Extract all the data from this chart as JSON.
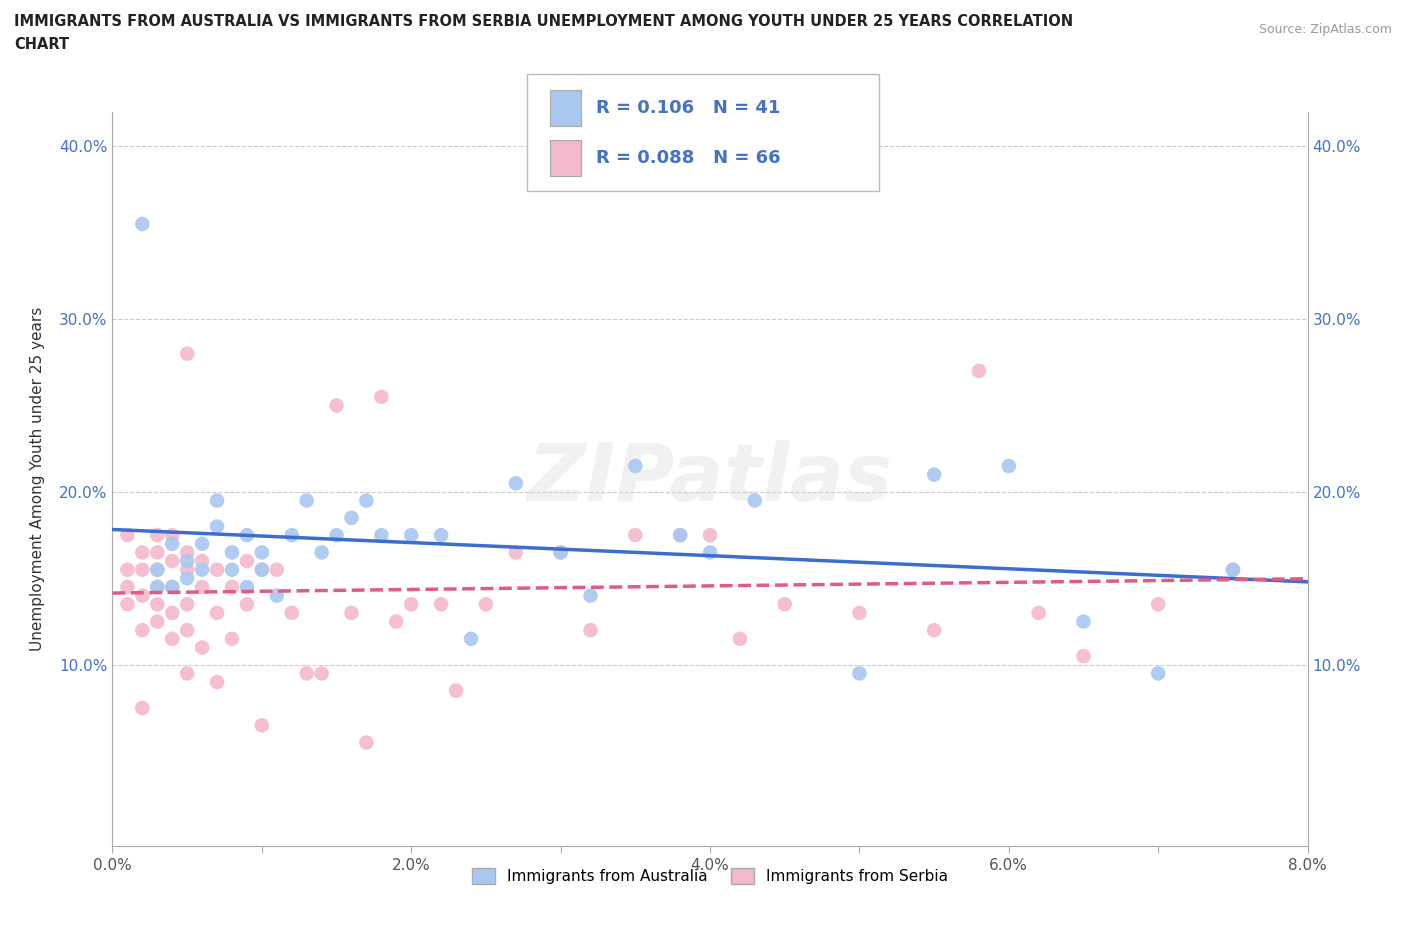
{
  "title": "IMMIGRANTS FROM AUSTRALIA VS IMMIGRANTS FROM SERBIA UNEMPLOYMENT AMONG YOUTH UNDER 25 YEARS CORRELATION\nCHART",
  "source_text": "Source: ZipAtlas.com",
  "ylabel": "Unemployment Among Youth under 25 years",
  "watermark": "ZIPatlas",
  "legend_label_1": "Immigrants from Australia",
  "legend_label_2": "Immigrants from Serbia",
  "R1": 0.106,
  "N1": 41,
  "R2": 0.088,
  "N2": 66,
  "color_australia": "#a8c8f0",
  "color_serbia": "#f4b8cc",
  "line_color_australia": "#3a6fcd",
  "line_color_serbia": "#e05a8a",
  "xlim": [
    0.0,
    0.08
  ],
  "ylim": [
    -0.005,
    0.42
  ],
  "xticks": [
    0.0,
    0.01,
    0.02,
    0.03,
    0.04,
    0.05,
    0.06,
    0.07,
    0.08
  ],
  "xtick_labels_show": [
    true,
    false,
    true,
    false,
    true,
    false,
    true,
    false,
    true
  ],
  "xtick_labels": [
    "0.0%",
    "",
    "2.0%",
    "",
    "4.0%",
    "",
    "6.0%",
    "",
    "8.0%"
  ],
  "yticks": [
    0.0,
    0.1,
    0.2,
    0.3,
    0.4
  ],
  "ytick_labels_left": [
    "",
    "10.0%",
    "20.0%",
    "30.0%",
    "40.0%"
  ],
  "ytick_labels_right": [
    "",
    "10.0%",
    "20.0%",
    "30.0%",
    "40.0%"
  ],
  "australia_x": [
    0.002,
    0.003,
    0.003,
    0.004,
    0.004,
    0.005,
    0.005,
    0.006,
    0.006,
    0.007,
    0.007,
    0.008,
    0.008,
    0.009,
    0.009,
    0.01,
    0.01,
    0.011,
    0.012,
    0.013,
    0.014,
    0.015,
    0.016,
    0.017,
    0.018,
    0.02,
    0.022,
    0.024,
    0.027,
    0.03,
    0.032,
    0.035,
    0.038,
    0.04,
    0.043,
    0.05,
    0.055,
    0.06,
    0.065,
    0.07,
    0.075
  ],
  "australia_y": [
    0.355,
    0.145,
    0.155,
    0.145,
    0.17,
    0.15,
    0.16,
    0.17,
    0.155,
    0.18,
    0.195,
    0.165,
    0.155,
    0.175,
    0.145,
    0.165,
    0.155,
    0.14,
    0.175,
    0.195,
    0.165,
    0.175,
    0.185,
    0.195,
    0.175,
    0.175,
    0.175,
    0.115,
    0.205,
    0.165,
    0.14,
    0.215,
    0.175,
    0.165,
    0.195,
    0.095,
    0.21,
    0.215,
    0.125,
    0.095,
    0.155
  ],
  "serbia_x": [
    0.001,
    0.001,
    0.001,
    0.001,
    0.002,
    0.002,
    0.002,
    0.002,
    0.002,
    0.003,
    0.003,
    0.003,
    0.003,
    0.003,
    0.003,
    0.004,
    0.004,
    0.004,
    0.004,
    0.004,
    0.005,
    0.005,
    0.005,
    0.005,
    0.005,
    0.005,
    0.006,
    0.006,
    0.006,
    0.007,
    0.007,
    0.007,
    0.008,
    0.008,
    0.009,
    0.009,
    0.01,
    0.01,
    0.011,
    0.012,
    0.013,
    0.014,
    0.015,
    0.016,
    0.017,
    0.018,
    0.019,
    0.02,
    0.022,
    0.023,
    0.025,
    0.027,
    0.03,
    0.032,
    0.035,
    0.038,
    0.04,
    0.042,
    0.045,
    0.05,
    0.055,
    0.058,
    0.062,
    0.065,
    0.07,
    0.075
  ],
  "serbia_y": [
    0.135,
    0.145,
    0.155,
    0.175,
    0.075,
    0.12,
    0.14,
    0.155,
    0.165,
    0.125,
    0.135,
    0.145,
    0.155,
    0.165,
    0.175,
    0.115,
    0.13,
    0.145,
    0.16,
    0.175,
    0.095,
    0.12,
    0.135,
    0.155,
    0.165,
    0.28,
    0.11,
    0.145,
    0.16,
    0.09,
    0.13,
    0.155,
    0.115,
    0.145,
    0.135,
    0.16,
    0.065,
    0.155,
    0.155,
    0.13,
    0.095,
    0.095,
    0.25,
    0.13,
    0.055,
    0.255,
    0.125,
    0.135,
    0.135,
    0.085,
    0.135,
    0.165,
    0.165,
    0.12,
    0.175,
    0.175,
    0.175,
    0.115,
    0.135,
    0.13,
    0.12,
    0.27,
    0.13,
    0.105,
    0.135,
    0.155
  ]
}
